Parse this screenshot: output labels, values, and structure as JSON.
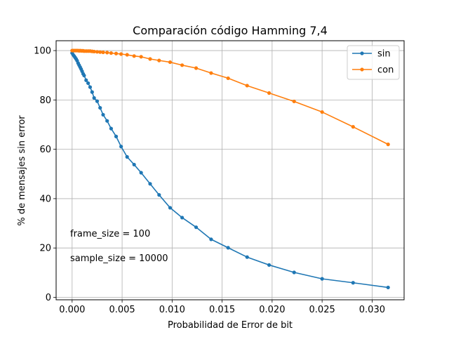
{
  "chart_data": {
    "type": "line",
    "title": "Comparación código Hamming 7,4",
    "xlabel": "Probabilidad de Error de bit",
    "ylabel": "% de mensajes sin error",
    "xlim": [
      -0.0016,
      0.0332
    ],
    "ylim": [
      -1,
      104
    ],
    "xticks": [
      0.0,
      0.005,
      0.01,
      0.015,
      0.02,
      0.025,
      0.03
    ],
    "xtick_labels": [
      "0.000",
      "0.005",
      "0.010",
      "0.015",
      "0.020",
      "0.025",
      "0.030"
    ],
    "yticks": [
      0,
      20,
      40,
      60,
      80,
      100
    ],
    "ytick_labels": [
      "0",
      "20",
      "40",
      "60",
      "80",
      "100"
    ],
    "grid": true,
    "legend_position": "top-right",
    "annotations": [
      "frame_size = 100",
      "sample_size = 10000"
    ],
    "series": [
      {
        "name": "sin",
        "color": "#1f77b4",
        "x": [
          0.0,
          0.0001,
          0.0002,
          0.0003,
          0.0004,
          0.0005,
          0.0006,
          0.0007,
          0.0008,
          0.0009,
          0.001,
          0.0011,
          0.0012,
          0.0014,
          0.0016,
          0.0018,
          0.002,
          0.0022,
          0.0025,
          0.0028,
          0.0031,
          0.0035,
          0.0039,
          0.0044,
          0.0049,
          0.0055,
          0.0062,
          0.0069,
          0.0078,
          0.0087,
          0.0098,
          0.011,
          0.0124,
          0.0139,
          0.0156,
          0.0175,
          0.0197,
          0.0222,
          0.025,
          0.0281,
          0.0316
        ],
        "y": [
          99.0,
          98.3,
          97.8,
          97.2,
          96.6,
          95.9,
          94.9,
          94.1,
          93.3,
          92.5,
          91.6,
          90.6,
          89.9,
          88.0,
          86.8,
          85.2,
          83.2,
          80.8,
          79.5,
          76.8,
          74.0,
          71.5,
          68.4,
          65.2,
          61.1,
          56.9,
          53.8,
          50.5,
          46.0,
          41.5,
          36.3,
          32.3,
          28.4,
          23.5,
          20.1,
          16.3,
          13.1,
          10.1,
          7.5,
          5.9,
          4.0
        ]
      },
      {
        "name": "con",
        "color": "#ff7f0e",
        "x": [
          0.0,
          0.0001,
          0.0002,
          0.0003,
          0.0004,
          0.0005,
          0.0006,
          0.0007,
          0.0008,
          0.0009,
          0.001,
          0.0011,
          0.0012,
          0.0014,
          0.0016,
          0.0018,
          0.002,
          0.0022,
          0.0025,
          0.0028,
          0.0031,
          0.0035,
          0.0039,
          0.0044,
          0.0049,
          0.0055,
          0.0062,
          0.0069,
          0.0078,
          0.0087,
          0.0098,
          0.011,
          0.0124,
          0.0139,
          0.0156,
          0.0175,
          0.0197,
          0.0222,
          0.025,
          0.0281,
          0.0316
        ],
        "y": [
          100.0,
          100.0,
          100.0,
          100.0,
          100.0,
          100.0,
          100.0,
          99.9,
          100.0,
          99.9,
          99.9,
          99.9,
          99.8,
          99.8,
          99.8,
          99.8,
          99.7,
          99.6,
          99.5,
          99.4,
          99.3,
          99.2,
          99.0,
          98.8,
          98.6,
          98.3,
          97.8,
          97.5,
          96.6,
          96.0,
          95.3,
          94.1,
          92.9,
          90.9,
          88.8,
          85.8,
          82.8,
          79.4,
          75.1,
          69.1,
          62.0
        ]
      }
    ]
  }
}
